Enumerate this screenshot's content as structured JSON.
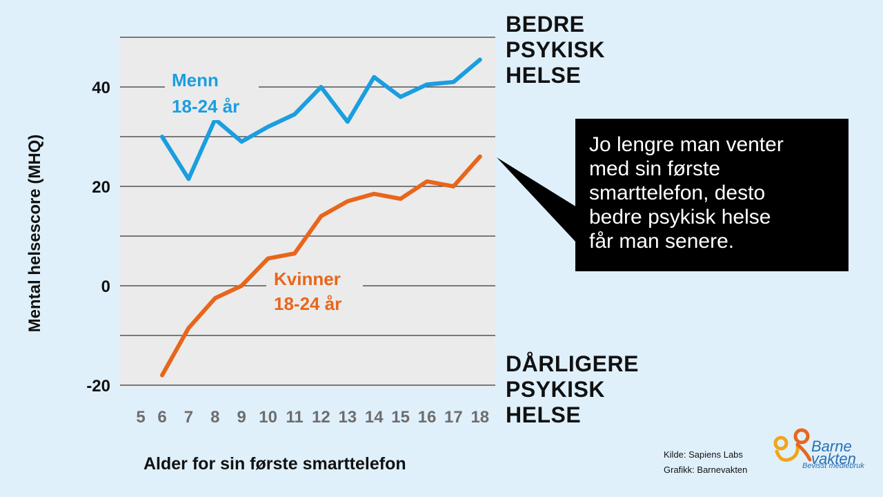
{
  "chart_data": {
    "type": "line",
    "ylabel": "Mental helsescore (MHQ)",
    "xlabel": "Alder for sin første smarttelefon",
    "x_ticks": [
      "5",
      "6",
      "7",
      "8",
      "9",
      "10",
      "11",
      "12",
      "13",
      "14",
      "15",
      "16",
      "17",
      "18"
    ],
    "y_ticks": [
      "40",
      "20",
      "0",
      "-20"
    ],
    "ylim": [
      -20,
      50
    ],
    "grid": true,
    "series": [
      {
        "name": "Menn 18-24 år",
        "label_lines": [
          "Menn",
          "18-24 år"
        ],
        "color": "#1a9ee0",
        "x": [
          6,
          7,
          8,
          9,
          10,
          11,
          12,
          13,
          14,
          15,
          16,
          17,
          18
        ],
        "values": [
          30,
          21.5,
          33.5,
          29,
          32,
          34.5,
          40,
          33,
          42,
          38,
          40.5,
          41,
          45.5
        ]
      },
      {
        "name": "Kvinner 18-24 år",
        "label_lines": [
          "Kvinner",
          "18-24 år"
        ],
        "color": "#e8661c",
        "x": [
          6,
          7,
          8,
          9,
          10,
          11,
          12,
          13,
          14,
          15,
          16,
          17,
          18
        ],
        "values": [
          -18,
          -8.5,
          -2.5,
          0,
          5.5,
          6.5,
          14,
          17,
          18.5,
          17.5,
          21,
          20,
          26
        ]
      }
    ],
    "annotation_top": [
      "BEDRE",
      "PSYKISK",
      "HELSE"
    ],
    "annotation_bottom": [
      "DÅRLIGERE",
      "PSYKISK",
      "HELSE"
    ],
    "callout": [
      "Jo lengre man venter",
      "med sin første",
      "smarttelefon, desto",
      "bedre psykisk helse",
      "får man senere."
    ]
  },
  "colors": {
    "background": "#dff0fb",
    "plot_area": "#ebebeb",
    "men": "#1a9ee0",
    "women": "#e8661c",
    "callout_bg": "#000000"
  },
  "source": {
    "line1": "Kilde: Sapiens Labs",
    "line2": "Grafikk: Barnevakten"
  },
  "logo": {
    "word1": "Barne",
    "word2": "vakten",
    "tagline": "Bevisst mediebruk"
  }
}
